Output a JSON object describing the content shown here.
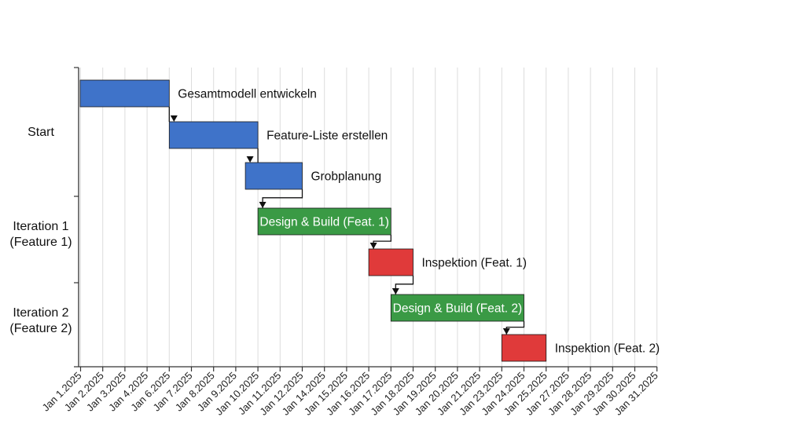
{
  "chart_data": {
    "type": "gantt",
    "title": "",
    "xlabel": "",
    "ylabel": "",
    "x_axis": {
      "type": "date",
      "range": [
        "2025-01-01",
        "2025-01-31"
      ],
      "tick_labels": [
        "Jan 1.2025",
        "Jan 2.2025",
        "Jan 3.2025",
        "Jan 4.2025",
        "Jan 6.2025",
        "Jan 7.2025",
        "Jan 8.2025",
        "Jan 9.2025",
        "Jan 10.2025",
        "Jan 11.2025",
        "Jan 12.2025",
        "Jan 14.2025",
        "Jan 15.2025",
        "Jan 16.2025",
        "Jan 17.2025",
        "Jan 18.2025",
        "Jan 19.2025",
        "Jan 20.2025",
        "Jan 21.2025",
        "Jan 23.2025",
        "Jan 24.2025",
        "Jan 25.2025",
        "Jan 27.2025",
        "Jan 28.2025",
        "Jan 29.2025",
        "Jan 30.2025",
        "Jan 31.2025"
      ],
      "grid": true
    },
    "groups": [
      {
        "label": "Start",
        "task_count": 3
      },
      {
        "label": "Iteration 1\n(Feature 1)",
        "task_count": 2
      },
      {
        "label": "Iteration 2\n(Feature 2)",
        "task_count": 2
      }
    ],
    "tasks": [
      {
        "name": "Gesamtmodell entwickeln",
        "start": "2025-01-01",
        "end": "2025-01-06",
        "group": "Start",
        "color": "#3f73c9",
        "label_position": "outside"
      },
      {
        "name": "Feature-Liste erstellen",
        "start": "2025-01-06",
        "end": "2025-01-10",
        "group": "Start",
        "color": "#3f73c9",
        "label_position": "outside"
      },
      {
        "name": "Grobplanung",
        "start": "2025-01-10",
        "end": "2025-01-12",
        "group": "Start",
        "color": "#3f73c9",
        "label_position": "outside"
      },
      {
        "name": "Design & Build (Feat. 1)",
        "start": "2025-01-10",
        "end": "2025-01-17",
        "group": "Iteration 1\n(Feature 1)",
        "color": "#3a9a45",
        "label_position": "inside"
      },
      {
        "name": "Inspektion (Feat. 1)",
        "start": "2025-01-16",
        "end": "2025-01-18",
        "group": "Iteration 1\n(Feature 1)",
        "color": "#e03a3a",
        "label_position": "outside"
      },
      {
        "name": "Design & Build (Feat. 2)",
        "start": "2025-01-17",
        "end": "2025-01-24",
        "group": "Iteration 2\n(Feature 2)",
        "color": "#3a9a45",
        "label_position": "inside"
      },
      {
        "name": "Inspektion (Feat. 2)",
        "start": "2025-01-23",
        "end": "2025-01-25",
        "group": "Iteration 2\n(Feature 2)",
        "color": "#e03a3a",
        "label_position": "outside"
      }
    ],
    "dependencies": [
      {
        "from": 0,
        "to": 1
      },
      {
        "from": 1,
        "to": 2
      },
      {
        "from": 2,
        "to": 3
      },
      {
        "from": 3,
        "to": 4
      },
      {
        "from": 4,
        "to": 5
      },
      {
        "from": 5,
        "to": 6
      }
    ]
  }
}
